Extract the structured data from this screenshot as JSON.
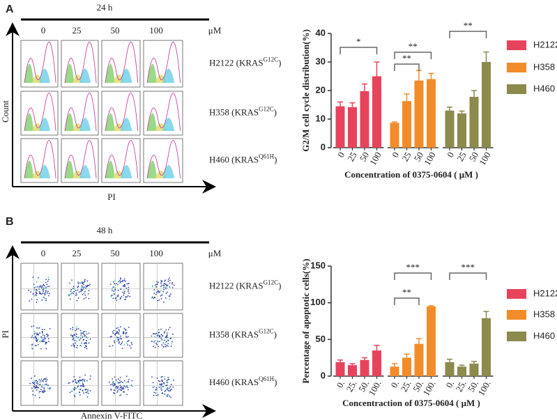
{
  "panels": [
    {
      "label": "A",
      "time": "24 h",
      "concentrations": [
        "0",
        "25",
        "50",
        "100"
      ],
      "unit": "μM",
      "cell_lines": [
        {
          "prefix": "H2122 (KRAS",
          "sup": "G12C",
          "suffix": ")"
        },
        {
          "prefix": "H358 (KRAS",
          "sup": "G12C",
          "suffix": ")"
        },
        {
          "prefix": "H460 (KRAS",
          "sup": "Q61H",
          "suffix": ")"
        }
      ],
      "y_axis": "Count",
      "x_axis": "PI"
    },
    {
      "label": "B",
      "time": "48 h",
      "concentrations": [
        "0",
        "25",
        "50",
        "100"
      ],
      "unit": "μM",
      "cell_lines": [
        {
          "prefix": "H2122 (KRAS",
          "sup": "G12C",
          "suffix": ")"
        },
        {
          "prefix": "H358 (KRAS",
          "sup": "G12C",
          "suffix": ")"
        },
        {
          "prefix": "H460 (KRAS",
          "sup": "Q61H",
          "suffix": ")"
        }
      ],
      "y_axis": "PI",
      "x_axis": "Annexin V-FITC"
    }
  ],
  "chart_data": [
    {
      "type": "bar",
      "y_label": "G2/M cell cycle distribution(%)",
      "x_label": "Concentration of 0375-0604 ( μM )",
      "categories": [
        "0",
        "25",
        "50",
        "100"
      ],
      "ylim": [
        0,
        40
      ],
      "yticks": [
        0,
        10,
        20,
        30,
        40
      ],
      "series": [
        {
          "name": "H2122",
          "color": "#e8435c",
          "values": [
            14.5,
            14.2,
            19.8,
            25
          ],
          "errors": [
            1.5,
            1.5,
            2.5,
            5
          ],
          "annotations": [
            "*"
          ]
        },
        {
          "name": "H358",
          "color": "#f28c2a",
          "values": [
            8.7,
            16.3,
            23.5,
            24
          ],
          "errors": [
            0.3,
            2.5,
            3.5,
            2
          ],
          "annotations": [
            "**",
            "**"
          ]
        },
        {
          "name": "H460",
          "color": "#8c8a4c",
          "values": [
            13,
            12,
            17.8,
            30
          ],
          "errors": [
            1.2,
            0.8,
            2.2,
            3.5
          ],
          "annotations": [
            "**"
          ]
        }
      ]
    },
    {
      "type": "bar",
      "y_label": "Percentage of apoptotic cells(%)",
      "x_label": "Concentraction of 0375-0604 ( μM )",
      "categories": [
        "0.",
        "25.",
        "50.",
        "100."
      ],
      "ylim": [
        0,
        150
      ],
      "yticks": [
        0,
        50,
        100,
        150
      ],
      "series": [
        {
          "name": "H2122",
          "color": "#e8435c",
          "values": [
            19,
            15,
            22,
            35
          ],
          "errors": [
            3,
            2,
            3,
            7
          ],
          "annotations": []
        },
        {
          "name": "H358",
          "color": "#f28c2a",
          "values": [
            13,
            25,
            44,
            95
          ],
          "errors": [
            4,
            5,
            7,
            1
          ],
          "annotations": [
            "***",
            "**"
          ]
        },
        {
          "name": "H460",
          "color": "#8c8a4c",
          "values": [
            19,
            13,
            17,
            79
          ],
          "errors": [
            4,
            2,
            3,
            9
          ],
          "annotations": [
            "***"
          ]
        }
      ]
    }
  ]
}
